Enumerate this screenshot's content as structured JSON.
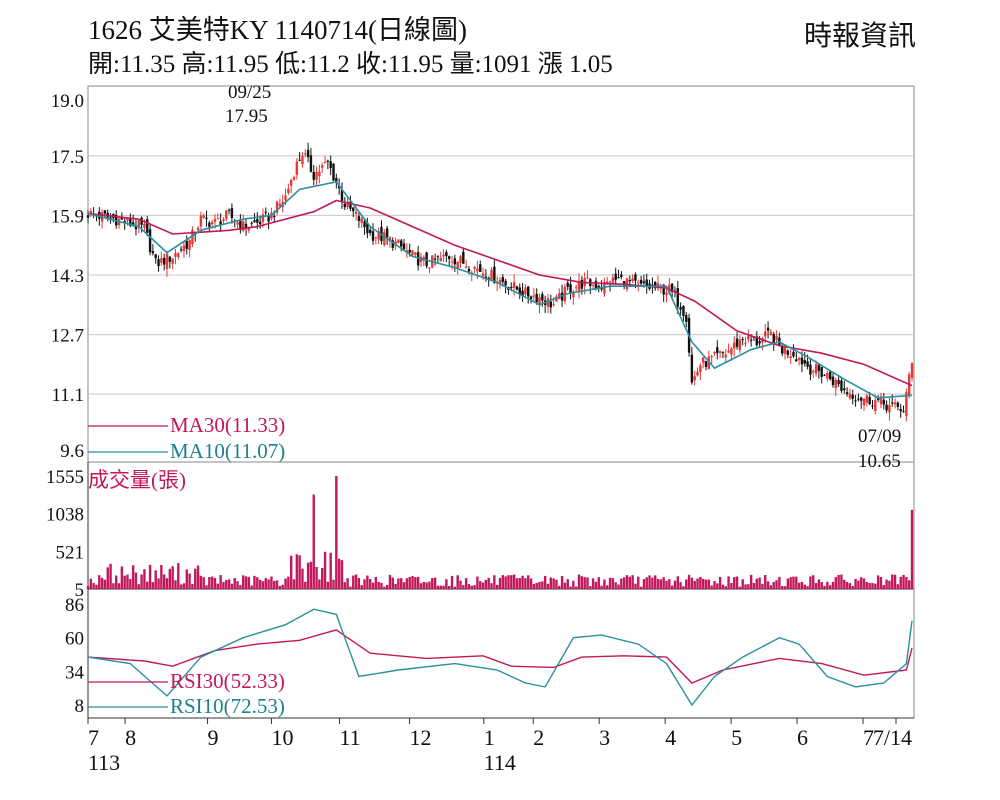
{
  "header": {
    "title": "1626  艾美特KY 1140714(日線圖)",
    "ohlc": "開:11.35 高:11.95 低:11.2 收:11.95 量:1091 漲 1.05",
    "source": "時報資訊"
  },
  "colors": {
    "up": "#e53935",
    "down": "#111111",
    "ma30": "#c2185b",
    "ma10": "#2a8fa0",
    "volume": "#c2185b",
    "rsi30": "#c2185b",
    "rsi10": "#2a8fa0",
    "grid": "#c8c8c8"
  },
  "chart_data": [
    {
      "type": "candlestick",
      "yticks": [
        "19.0",
        "17.5",
        "15.9",
        "14.3",
        "12.7",
        "11.1",
        "9.6"
      ],
      "ylim": [
        9.6,
        19.0
      ],
      "legend": [
        "MA30(11.33)",
        "MA10(11.07)"
      ],
      "annotations": {
        "high_date": "09/25",
        "high_value": "17.95",
        "low_date": "07/09",
        "low_value": "10.65"
      },
      "close_path": [
        [
          0,
          15.95
        ],
        [
          10,
          15.8
        ],
        [
          20,
          15.55
        ],
        [
          24,
          14.6
        ],
        [
          30,
          14.8
        ],
        [
          36,
          15.2
        ],
        [
          40,
          15.8
        ],
        [
          45,
          15.7
        ],
        [
          50,
          15.9
        ],
        [
          55,
          15.6
        ],
        [
          60,
          15.7
        ],
        [
          65,
          15.9
        ],
        [
          70,
          16.4
        ],
        [
          73,
          17.1
        ],
        [
          76,
          17.6
        ],
        [
          80,
          17.0
        ],
        [
          85,
          17.3
        ],
        [
          88,
          16.8
        ],
        [
          91,
          16.2
        ],
        [
          96,
          15.8
        ],
        [
          100,
          15.4
        ],
        [
          105,
          15.3
        ],
        [
          110,
          15.1
        ],
        [
          115,
          14.8
        ],
        [
          120,
          14.6
        ],
        [
          128,
          14.8
        ],
        [
          134,
          14.6
        ],
        [
          140,
          14.4
        ],
        [
          145,
          14.2
        ],
        [
          150,
          14.0
        ],
        [
          155,
          13.8
        ],
        [
          160,
          13.7
        ],
        [
          165,
          13.5
        ],
        [
          170,
          13.9
        ],
        [
          176,
          14.1
        ],
        [
          182,
          14.0
        ],
        [
          188,
          14.2
        ],
        [
          195,
          14.0
        ],
        [
          200,
          13.95
        ],
        [
          206,
          13.9
        ],
        [
          210,
          13.5
        ],
        [
          212,
          13.2
        ],
        [
          214,
          11.4
        ],
        [
          217,
          11.9
        ],
        [
          220,
          12.0
        ],
        [
          226,
          12.2
        ],
        [
          232,
          12.6
        ],
        [
          237,
          12.5
        ],
        [
          242,
          12.7
        ],
        [
          246,
          12.3
        ],
        [
          250,
          12.2
        ],
        [
          256,
          11.8
        ],
        [
          262,
          11.6
        ],
        [
          268,
          11.2
        ],
        [
          274,
          11.0
        ],
        [
          280,
          10.9
        ],
        [
          285,
          10.75
        ],
        [
          289,
          10.7
        ],
        [
          292,
          11.9
        ]
      ],
      "ma30": [
        [
          0,
          15.95
        ],
        [
          18,
          15.8
        ],
        [
          30,
          15.4
        ],
        [
          40,
          15.45
        ],
        [
          50,
          15.5
        ],
        [
          60,
          15.6
        ],
        [
          70,
          15.8
        ],
        [
          80,
          16.0
        ],
        [
          88,
          16.3
        ],
        [
          100,
          16.1
        ],
        [
          115,
          15.6
        ],
        [
          130,
          15.1
        ],
        [
          145,
          14.7
        ],
        [
          160,
          14.3
        ],
        [
          175,
          14.1
        ],
        [
          190,
          14.05
        ],
        [
          205,
          13.95
        ],
        [
          215,
          13.6
        ],
        [
          230,
          12.8
        ],
        [
          245,
          12.4
        ],
        [
          260,
          12.2
        ],
        [
          275,
          11.9
        ],
        [
          292,
          11.33
        ]
      ],
      "ma10": [
        [
          0,
          15.95
        ],
        [
          18,
          15.6
        ],
        [
          28,
          14.9
        ],
        [
          40,
          15.5
        ],
        [
          55,
          15.8
        ],
        [
          65,
          15.9
        ],
        [
          75,
          16.6
        ],
        [
          88,
          16.8
        ],
        [
          100,
          15.6
        ],
        [
          115,
          14.8
        ],
        [
          130,
          14.5
        ],
        [
          145,
          14.1
        ],
        [
          160,
          13.5
        ],
        [
          170,
          13.8
        ],
        [
          185,
          14.0
        ],
        [
          205,
          14.0
        ],
        [
          214,
          12.5
        ],
        [
          222,
          11.8
        ],
        [
          235,
          12.3
        ],
        [
          245,
          12.5
        ],
        [
          255,
          12.1
        ],
        [
          268,
          11.5
        ],
        [
          280,
          11.0
        ],
        [
          292,
          11.07
        ]
      ]
    },
    {
      "type": "bar",
      "label": "成交量(張)",
      "yticks": [
        "1555",
        "1038",
        "521",
        "5"
      ],
      "ylim": [
        5,
        1555
      ],
      "spikes": [
        [
          80,
          1300
        ],
        [
          88,
          1555
        ],
        [
          292,
          1091
        ]
      ],
      "base_level": 120
    },
    {
      "type": "line",
      "yticks": [
        "86",
        "60",
        "34",
        "8"
      ],
      "ylim": [
        8,
        86
      ],
      "legend": [
        "RSI30(52.33)",
        "RSI10(72.53)"
      ],
      "rsi30": [
        [
          0,
          45
        ],
        [
          20,
          42
        ],
        [
          30,
          38
        ],
        [
          45,
          50
        ],
        [
          60,
          55
        ],
        [
          75,
          58
        ],
        [
          88,
          66
        ],
        [
          100,
          48
        ],
        [
          120,
          44
        ],
        [
          140,
          46
        ],
        [
          150,
          38
        ],
        [
          165,
          37
        ],
        [
          175,
          45
        ],
        [
          190,
          46
        ],
        [
          205,
          45
        ],
        [
          214,
          25
        ],
        [
          225,
          35
        ],
        [
          245,
          44
        ],
        [
          260,
          40
        ],
        [
          275,
          31
        ],
        [
          290,
          35
        ],
        [
          292,
          52
        ]
      ],
      "rsi10": [
        [
          0,
          45
        ],
        [
          15,
          40
        ],
        [
          28,
          15
        ],
        [
          40,
          45
        ],
        [
          55,
          60
        ],
        [
          70,
          70
        ],
        [
          80,
          82
        ],
        [
          88,
          78
        ],
        [
          96,
          30
        ],
        [
          110,
          35
        ],
        [
          130,
          40
        ],
        [
          145,
          35
        ],
        [
          155,
          25
        ],
        [
          162,
          22
        ],
        [
          172,
          60
        ],
        [
          182,
          62
        ],
        [
          195,
          55
        ],
        [
          205,
          40
        ],
        [
          214,
          8
        ],
        [
          222,
          30
        ],
        [
          232,
          45
        ],
        [
          245,
          60
        ],
        [
          252,
          55
        ],
        [
          262,
          30
        ],
        [
          272,
          22
        ],
        [
          282,
          25
        ],
        [
          290,
          40
        ],
        [
          292,
          73
        ]
      ]
    }
  ],
  "x_axis": {
    "months": [
      {
        "label": "7",
        "pos": 0
      },
      {
        "label": "8",
        "pos": 18
      },
      {
        "label": "9",
        "pos": 58
      },
      {
        "label": "10",
        "pos": 89
      },
      {
        "label": "11",
        "pos": 122
      },
      {
        "label": "12",
        "pos": 156
      },
      {
        "label": "1",
        "pos": 192
      },
      {
        "label": "2",
        "pos": 216
      },
      {
        "label": "3",
        "pos": 248
      },
      {
        "label": "4",
        "pos": 280
      },
      {
        "label": "5",
        "pos": 312
      },
      {
        "label": "6",
        "pos": 344
      },
      {
        "label": "7",
        "pos": 376
      },
      {
        "label": "7/14",
        "pos": 392
      }
    ],
    "years": [
      {
        "label": "113",
        "pos": 0
      },
      {
        "label": "114",
        "pos": 192
      }
    ]
  }
}
